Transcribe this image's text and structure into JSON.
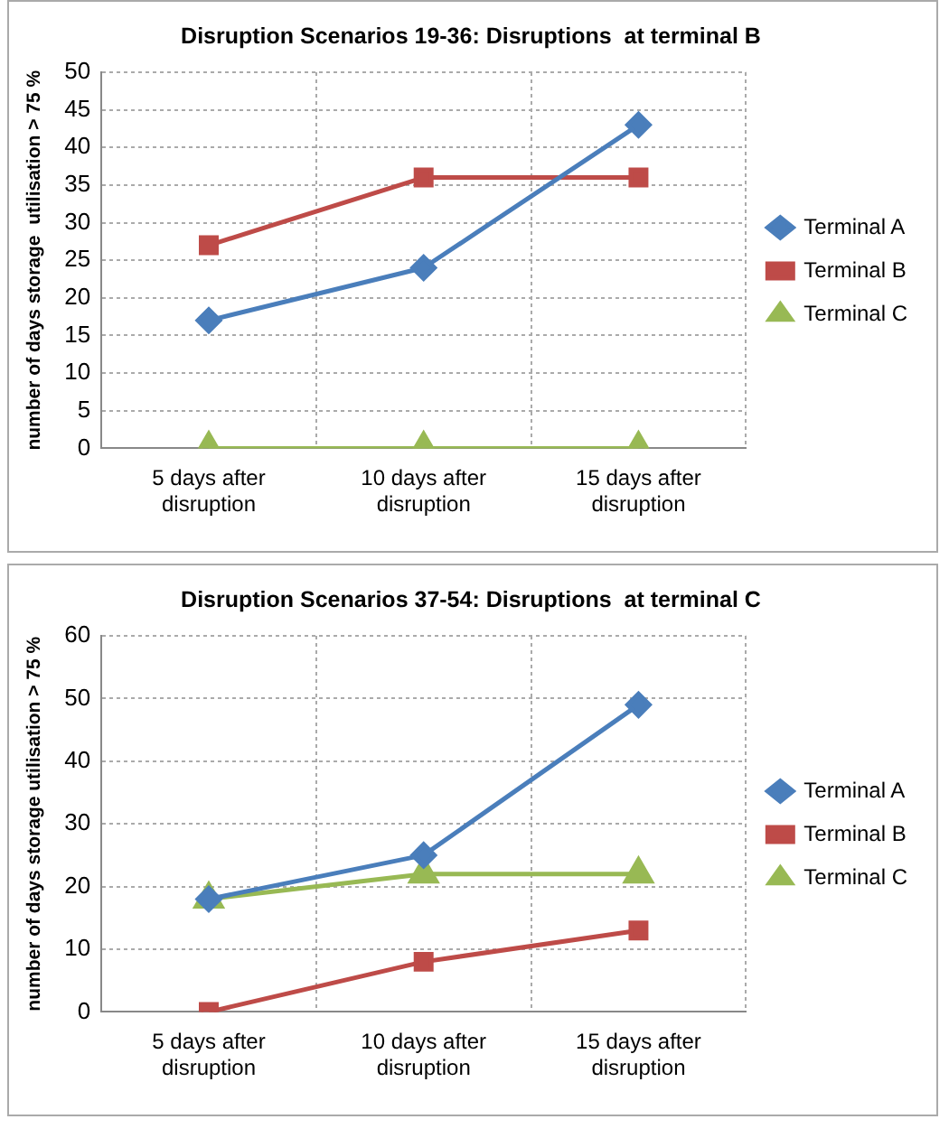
{
  "chart_data": [
    {
      "type": "line",
      "title": "Disruption Scenarios 19-36: Disruptions  at terminal B",
      "ylabel": "number of days storage  utilisation > 75 %",
      "categories": [
        "5 days after disruption",
        "10 days after disruption",
        "15 days after disruption"
      ],
      "series": [
        {
          "name": "Terminal A",
          "color": "#4a7ebb",
          "marker": "diamond",
          "values": [
            17,
            24,
            43
          ]
        },
        {
          "name": "Terminal B",
          "color": "#be4b48",
          "marker": "square",
          "values": [
            27,
            36,
            36
          ]
        },
        {
          "name": "Terminal C",
          "color": "#98b954",
          "marker": "triangle",
          "values": [
            0,
            0,
            0
          ]
        }
      ],
      "ylim": [
        0,
        50
      ],
      "yticks": [
        0,
        5,
        10,
        15,
        20,
        25,
        30,
        35,
        40,
        45,
        50
      ],
      "grid": true,
      "legend": "right",
      "line_style": "solid"
    },
    {
      "type": "line",
      "title": "Disruption Scenarios 37-54: Disruptions  at terminal C",
      "ylabel": "number of days storage utilisation > 75 %",
      "categories": [
        "5 days after disruption",
        "10 days after disruption",
        "15 days after disruption"
      ],
      "series": [
        {
          "name": "Terminal A",
          "color": "#4a7ebb",
          "marker": "diamond",
          "values": [
            18,
            25,
            49
          ]
        },
        {
          "name": "Terminal B",
          "color": "#be4b48",
          "marker": "square",
          "values": [
            0,
            8,
            13
          ]
        },
        {
          "name": "Terminal C",
          "color": "#98b954",
          "marker": "triangle",
          "values": [
            18,
            22,
            22
          ]
        }
      ],
      "ylim": [
        0,
        60
      ],
      "yticks": [
        0,
        10,
        20,
        30,
        40,
        50,
        60
      ],
      "grid": true,
      "legend": "right",
      "line_style": "solid"
    }
  ]
}
